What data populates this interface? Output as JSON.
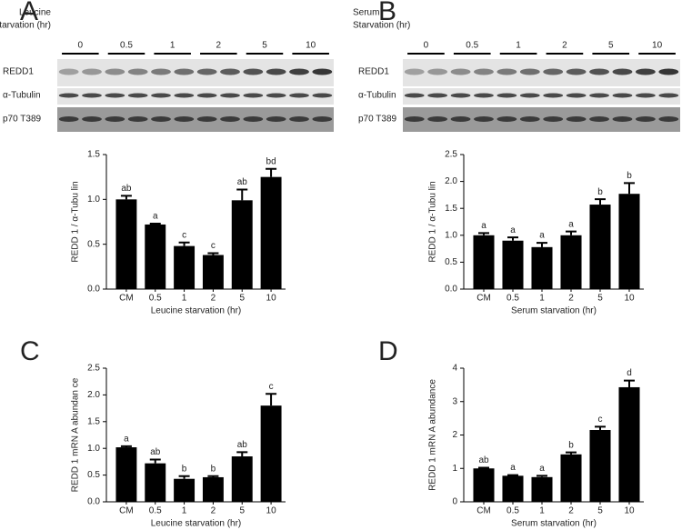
{
  "blots": [
    {
      "panel": "A",
      "title_lines": [
        "Leucine",
        "Starvation (hr)"
      ],
      "lanes": [
        "0",
        "0.5",
        "1",
        "2",
        "5",
        "10"
      ],
      "rows": [
        "REDD1",
        "α-Tubulin",
        "p70 T389"
      ]
    },
    {
      "panel": "B",
      "title_lines": [
        "Serum",
        "Starvation (hr)"
      ],
      "lanes": [
        "0",
        "0.5",
        "1",
        "2",
        "5",
        "10"
      ],
      "rows": [
        "REDD1",
        "α-Tubulin",
        "p70 T389"
      ]
    }
  ],
  "chart_data": [
    {
      "type": "bar",
      "color": "#000000",
      "categories": [
        "CM",
        "0.5",
        "1",
        "2",
        "5",
        "10"
      ],
      "values": [
        1.0,
        0.72,
        0.48,
        0.38,
        0.99,
        1.25
      ],
      "errors": [
        0.04,
        0.01,
        0.04,
        0.02,
        0.12,
        0.09
      ],
      "letters": [
        "ab",
        "a",
        "c",
        "c",
        "ab",
        "bd"
      ],
      "ylabel": "REDD 1 / α-Tubu lin",
      "xlabel": "Leucine starvation (hr)",
      "ylim": [
        0,
        1.5
      ],
      "yticks": [
        {
          "value": 0,
          "label": "0.0"
        },
        0.5,
        {
          "value": 1,
          "label": "1.0"
        },
        1.5
      ]
    },
    {
      "type": "bar",
      "color": "#000000",
      "categories": [
        "CM",
        "0.5",
        "1",
        "2",
        "5",
        "10"
      ],
      "values": [
        1.0,
        0.9,
        0.78,
        1.0,
        1.57,
        1.77
      ],
      "errors": [
        0.04,
        0.06,
        0.08,
        0.07,
        0.1,
        0.2
      ],
      "letters": [
        "a",
        "a",
        "a",
        "a",
        "b",
        "b"
      ],
      "ylabel": "REDD 1 / α-Tubu lin",
      "xlabel": "Serum starvation (hr)",
      "ylim": [
        0,
        2.5
      ],
      "yticks": [
        {
          "value": 0,
          "label": "0.0"
        },
        0.5,
        {
          "value": 1,
          "label": "1.0"
        },
        1.5,
        {
          "value": 2,
          "label": "2.0"
        },
        2.5
      ]
    },
    {
      "type": "bar",
      "panel": "C",
      "color": "#000000",
      "categories": [
        "CM",
        "0.5",
        "1",
        "2",
        "5",
        "10"
      ],
      "values": [
        1.02,
        0.72,
        0.43,
        0.46,
        0.85,
        1.8
      ],
      "errors": [
        0.02,
        0.07,
        0.05,
        0.02,
        0.08,
        0.22
      ],
      "letters": [
        "a",
        "ab",
        "b",
        "b",
        "ab",
        "c"
      ],
      "ylabel": "REDD 1 mRN A abundan ce",
      "xlabel": "Leucine starvation (hr)",
      "ylim": [
        0,
        2.5
      ],
      "yticks": [
        {
          "value": 0,
          "label": "0.0"
        },
        0.5,
        {
          "value": 1,
          "label": "1.0"
        },
        1.5,
        {
          "value": 2,
          "label": "2.0"
        },
        2.5
      ]
    },
    {
      "type": "bar",
      "panel": "D",
      "color": "#000000",
      "categories": [
        "CM",
        "0.5",
        "1",
        "2",
        "5",
        "10"
      ],
      "values": [
        1.0,
        0.78,
        0.74,
        1.42,
        2.15,
        3.43
      ],
      "errors": [
        0.02,
        0.02,
        0.04,
        0.06,
        0.1,
        0.2
      ],
      "letters": [
        "ab",
        "a",
        "a",
        "b",
        "c",
        "d"
      ],
      "ylabel": "REDD 1 mRN A abundance",
      "xlabel": "Serum starvation (hr)",
      "ylim": [
        0,
        4
      ],
      "yticks": [
        0,
        1,
        2,
        3,
        4
      ]
    }
  ]
}
